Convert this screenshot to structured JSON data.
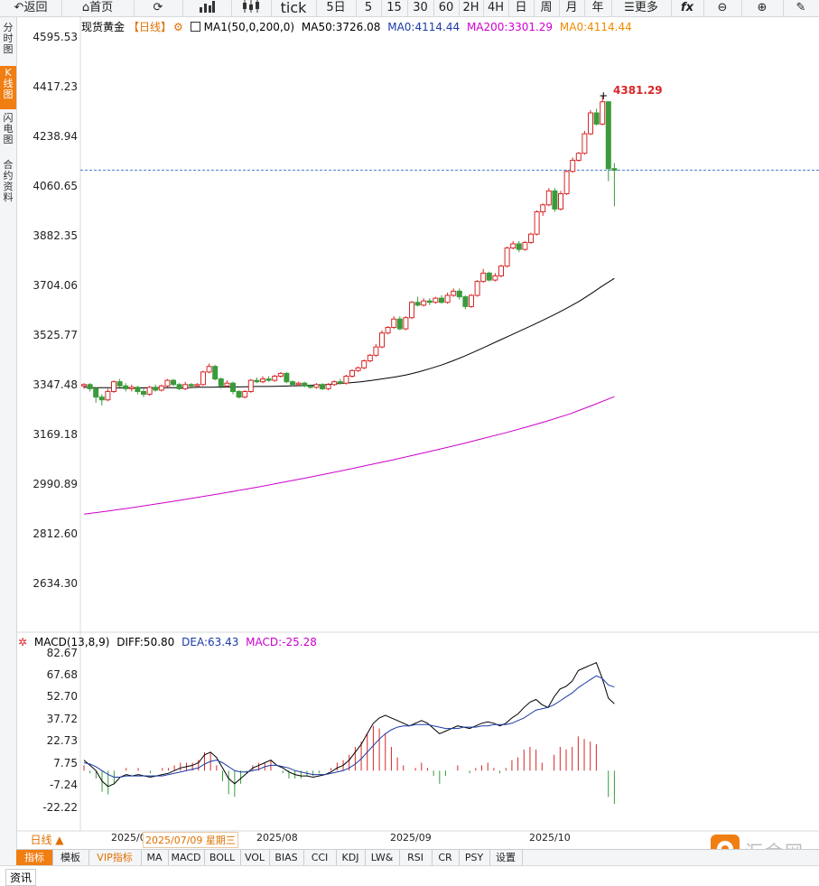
{
  "toolbar": {
    "back": "返回",
    "home": "首页",
    "tick": "tick",
    "d5": "5日",
    "m5": "5",
    "m15": "15",
    "m30": "30",
    "m60": "60",
    "h2": "2H",
    "h4": "4H",
    "day": "日",
    "week": "周",
    "month": "月",
    "year": "年",
    "more": "更多",
    "fx": "fx"
  },
  "sidebar": {
    "timeshare": "分时图",
    "kline": "K线图",
    "flash": "闪电图",
    "contract": "合约资料"
  },
  "legend": {
    "name": "现货黄金",
    "period": "【日线】",
    "ma1": "MA1(50,0,200,0)",
    "ma50": "MA50:3726.08",
    "ma0": "MA0:4114.44",
    "ma200": "MA200:3301.29",
    "ma0b": "MA0:4114.44"
  },
  "price_axis": [
    "4595.53",
    "4417.23",
    "4238.94",
    "4060.65",
    "3882.35",
    "3704.06",
    "3525.77",
    "3347.48",
    "3169.18",
    "2990.89",
    "2812.60",
    "2634.30"
  ],
  "high_label": "4381.29",
  "macd_legend": {
    "name": "MACD(13,8,9)",
    "diff": "DIFF:50.80",
    "dea": "DEA:63.43",
    "macd": "MACD:-25.28"
  },
  "macd_axis": [
    "82.67",
    "67.68",
    "52.70",
    "37.72",
    "22.73",
    "7.75",
    "-7.24",
    "-22.22"
  ],
  "dates": {
    "d1": "2025/0",
    "cursor": "2025/07/09 星期三",
    "d2": "2025/08",
    "d3": "2025/09",
    "d4": "2025/10"
  },
  "period_label": "日线 ▲",
  "bottom_tabs": [
    "指标",
    "模板",
    "VIP指标",
    "MA",
    "MACD",
    "BOLL",
    "VOL",
    "BIAS",
    "CCI",
    "KDJ",
    "LW&",
    "RSI",
    "CR",
    "PSY",
    "设置"
  ],
  "status_label": "资讯",
  "logo_text": "汇金网",
  "colors": {
    "up": "#d62728",
    "down": "#3a9b3a",
    "ma50": "#000000",
    "ma200": "#cc00cc",
    "accent": "#f07e12"
  },
  "chart_data": {
    "type": "candlestick",
    "ylim": [
      2634.3,
      4595.53
    ],
    "last_price": 4114.44,
    "high": 4381.29,
    "candles": [
      [
        3340,
        3345,
        3350,
        3330
      ],
      [
        3345,
        3330,
        3350,
        3320
      ],
      [
        3330,
        3300,
        3335,
        3280
      ],
      [
        3300,
        3290,
        3310,
        3270
      ],
      [
        3290,
        3320,
        3330,
        3285
      ],
      [
        3320,
        3355,
        3360,
        3315
      ],
      [
        3355,
        3340,
        3365,
        3335
      ],
      [
        3340,
        3330,
        3350,
        3320
      ],
      [
        3330,
        3335,
        3345,
        3320
      ],
      [
        3335,
        3320,
        3340,
        3310
      ],
      [
        3320,
        3310,
        3330,
        3300
      ],
      [
        3310,
        3335,
        3340,
        3305
      ],
      [
        3335,
        3325,
        3345,
        3320
      ],
      [
        3325,
        3340,
        3345,
        3320
      ],
      [
        3340,
        3360,
        3365,
        3335
      ],
      [
        3360,
        3345,
        3365,
        3340
      ],
      [
        3345,
        3330,
        3350,
        3325
      ],
      [
        3330,
        3345,
        3355,
        3325
      ],
      [
        3345,
        3340,
        3350,
        3335
      ],
      [
        3340,
        3345,
        3350,
        3335
      ],
      [
        3345,
        3390,
        3395,
        3340
      ],
      [
        3390,
        3410,
        3420,
        3385
      ],
      [
        3410,
        3365,
        3415,
        3360
      ],
      [
        3365,
        3340,
        3370,
        3330
      ],
      [
        3340,
        3350,
        3360,
        3335
      ],
      [
        3350,
        3320,
        3355,
        3310
      ],
      [
        3320,
        3300,
        3325,
        3295
      ],
      [
        3300,
        3320,
        3325,
        3295
      ],
      [
        3320,
        3360,
        3365,
        3315
      ],
      [
        3360,
        3355,
        3370,
        3350
      ],
      [
        3355,
        3365,
        3375,
        3350
      ],
      [
        3365,
        3360,
        3375,
        3355
      ],
      [
        3360,
        3375,
        3380,
        3355
      ],
      [
        3375,
        3385,
        3390,
        3370
      ],
      [
        3385,
        3355,
        3390,
        3350
      ],
      [
        3355,
        3345,
        3360,
        3340
      ],
      [
        3345,
        3350,
        3355,
        3340
      ],
      [
        3350,
        3340,
        3355,
        3335
      ],
      [
        3340,
        3335,
        3345,
        3330
      ],
      [
        3335,
        3345,
        3350,
        3330
      ],
      [
        3345,
        3330,
        3350,
        3325
      ],
      [
        3330,
        3345,
        3350,
        3325
      ],
      [
        3345,
        3355,
        3360,
        3340
      ],
      [
        3355,
        3350,
        3365,
        3345
      ],
      [
        3350,
        3375,
        3380,
        3345
      ],
      [
        3375,
        3395,
        3400,
        3370
      ],
      [
        3395,
        3405,
        3410,
        3390
      ],
      [
        3405,
        3430,
        3435,
        3400
      ],
      [
        3430,
        3450,
        3455,
        3425
      ],
      [
        3450,
        3480,
        3490,
        3445
      ],
      [
        3480,
        3530,
        3540,
        3475
      ],
      [
        3530,
        3550,
        3555,
        3525
      ],
      [
        3550,
        3580,
        3590,
        3545
      ],
      [
        3580,
        3545,
        3590,
        3540
      ],
      [
        3545,
        3585,
        3590,
        3540
      ],
      [
        3585,
        3640,
        3645,
        3580
      ],
      [
        3640,
        3630,
        3660,
        3625
      ],
      [
        3630,
        3645,
        3655,
        3625
      ],
      [
        3645,
        3640,
        3655,
        3630
      ],
      [
        3640,
        3655,
        3660,
        3635
      ],
      [
        3655,
        3640,
        3665,
        3635
      ],
      [
        3640,
        3665,
        3675,
        3635
      ],
      [
        3665,
        3680,
        3690,
        3660
      ],
      [
        3680,
        3660,
        3690,
        3650
      ],
      [
        3660,
        3625,
        3665,
        3615
      ],
      [
        3625,
        3665,
        3670,
        3620
      ],
      [
        3665,
        3715,
        3720,
        3660
      ],
      [
        3715,
        3745,
        3760,
        3710
      ],
      [
        3745,
        3720,
        3750,
        3715
      ],
      [
        3720,
        3735,
        3745,
        3715
      ],
      [
        3735,
        3770,
        3775,
        3730
      ],
      [
        3770,
        3835,
        3840,
        3765
      ],
      [
        3835,
        3850,
        3860,
        3830
      ],
      [
        3850,
        3830,
        3860,
        3820
      ],
      [
        3830,
        3855,
        3860,
        3825
      ],
      [
        3855,
        3885,
        3890,
        3850
      ],
      [
        3885,
        3965,
        3970,
        3880
      ],
      [
        3965,
        3990,
        3995,
        3950
      ],
      [
        3990,
        4040,
        4050,
        3985
      ],
      [
        4040,
        3975,
        4050,
        3965
      ],
      [
        3975,
        4030,
        4040,
        3970
      ],
      [
        4030,
        4110,
        4115,
        4025
      ],
      [
        4110,
        4150,
        4160,
        4105
      ],
      [
        4150,
        4175,
        4180,
        4145
      ],
      [
        4175,
        4245,
        4255,
        4170
      ],
      [
        4245,
        4320,
        4330,
        4240
      ],
      [
        4320,
        4280,
        4335,
        4275
      ],
      [
        4280,
        4360,
        4381,
        4275
      ],
      [
        4360,
        4120,
        4362,
        4075
      ],
      [
        4120,
        4114,
        4140,
        3985
      ]
    ],
    "ma50": [
      3335,
      3334,
      3334,
      3333,
      3333,
      3333,
      3333,
      3334,
      3334,
      3334,
      3335,
      3335,
      3336,
      3336,
      3337,
      3338,
      3338,
      3339,
      3340,
      3341,
      3343,
      3345,
      3348,
      3351,
      3355,
      3360,
      3366,
      3372,
      3380,
      3390,
      3402,
      3415,
      3430,
      3447,
      3465,
      3484,
      3503,
      3522,
      3541,
      3560,
      3580,
      3600,
      3622,
      3645,
      3672,
      3700,
      3726
    ],
    "ma200": [
      2880,
      2890,
      2901,
      2913,
      2925,
      2938,
      2951,
      2965,
      2979,
      2994,
      3009,
      3025,
      3041,
      3058,
      3075,
      3093,
      3111,
      3130,
      3150,
      3170,
      3192,
      3215,
      3240,
      3270,
      3301.29
    ],
    "macd_ylim": [
      -30,
      90
    ],
    "diff": [
      8,
      4,
      0,
      -8,
      -12,
      -10,
      -5,
      -3,
      -4,
      -3,
      -4,
      -5,
      -4,
      -3,
      -2,
      0,
      2,
      3,
      4,
      6,
      12,
      14,
      10,
      2,
      -6,
      -10,
      -6,
      -2,
      2,
      4,
      6,
      8,
      4,
      2,
      -1,
      -3,
      -4,
      -4,
      -5,
      -4,
      -3,
      -1,
      2,
      4,
      8,
      14,
      20,
      28,
      36,
      40,
      42,
      40,
      38,
      36,
      34,
      36,
      38,
      36,
      32,
      28,
      30,
      32,
      34,
      33,
      32,
      34,
      36,
      37,
      36,
      34,
      36,
      40,
      43,
      48,
      52,
      54,
      50,
      48,
      56,
      62,
      64,
      68,
      76,
      78,
      80,
      82,
      70,
      55,
      50.8
    ],
    "dea": [
      6,
      5,
      3,
      0,
      -3,
      -5,
      -5,
      -4,
      -4,
      -4,
      -4,
      -4,
      -4,
      -4,
      -3,
      -2,
      -1,
      0,
      1,
      2,
      5,
      7,
      8,
      6,
      3,
      0,
      -1,
      -1,
      0,
      1,
      3,
      4,
      4,
      3,
      2,
      0,
      -1,
      -2,
      -3,
      -3,
      -3,
      -2,
      -1,
      0,
      2,
      5,
      9,
      14,
      19,
      24,
      28,
      31,
      33,
      34,
      34,
      35,
      35,
      35,
      34,
      33,
      32,
      32,
      32,
      33,
      33,
      33,
      34,
      34,
      35,
      35,
      35,
      36,
      38,
      40,
      43,
      46,
      47,
      48,
      50,
      53,
      56,
      59,
      63,
      66,
      69,
      72,
      70,
      65,
      63.43
    ]
  }
}
